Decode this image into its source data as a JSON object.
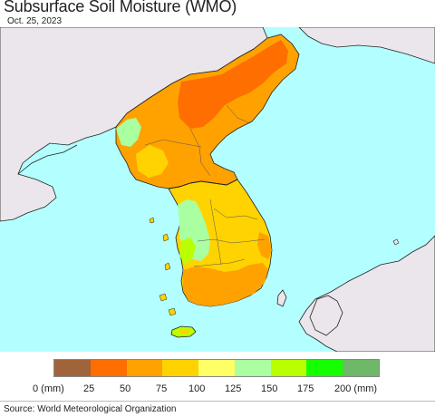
{
  "title": "Subsurface Soil Moisture (WMO)",
  "date": "Oct. 25, 2023",
  "legend": {
    "colors": [
      "#a0643a",
      "#fe6e00",
      "#ffa200",
      "#ffd300",
      "#ffee2b",
      "#ffff66",
      "#aaffa0",
      "#b9ff00",
      "#16ff00",
      "#6fb868"
    ],
    "labels": [
      "0 (mm)",
      "25",
      "50",
      "75",
      "100",
      "125",
      "150",
      "175",
      "200 (mm)"
    ]
  },
  "source": "Source: World Meteorological Organization",
  "map_colors": {
    "sea": "#b3ffff",
    "land_outside": "#ebe6eb",
    "border": "#222222"
  }
}
